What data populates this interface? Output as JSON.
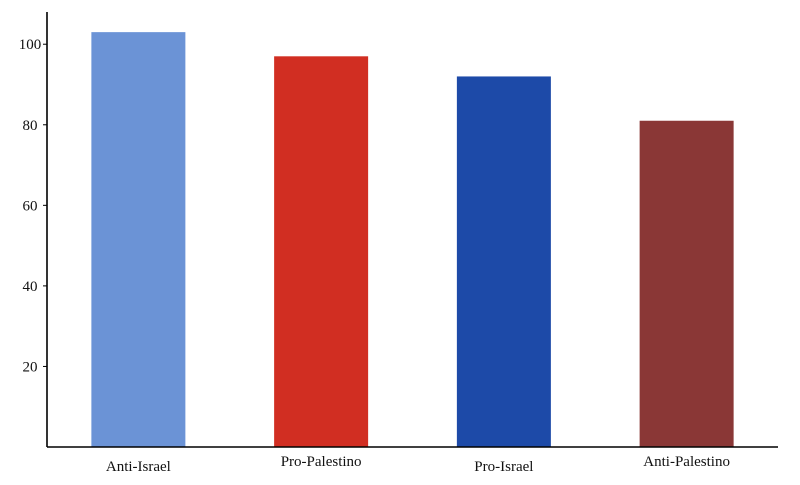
{
  "chart_data": {
    "type": "bar",
    "title": "",
    "xlabel": "",
    "ylabel": "",
    "categories": [
      "Anti-Israel",
      "Pro-Palestino",
      "Pro-Israel",
      "Anti-Palestino"
    ],
    "values": [
      103,
      97,
      92,
      81
    ],
    "colors": [
      "#6b93d6",
      "#d12e22",
      "#1d4aa8",
      "#8a3736"
    ],
    "ylim": [
      0,
      108
    ],
    "yticks": [
      20,
      40,
      60,
      80,
      100
    ],
    "grid": false,
    "legend": "none"
  }
}
